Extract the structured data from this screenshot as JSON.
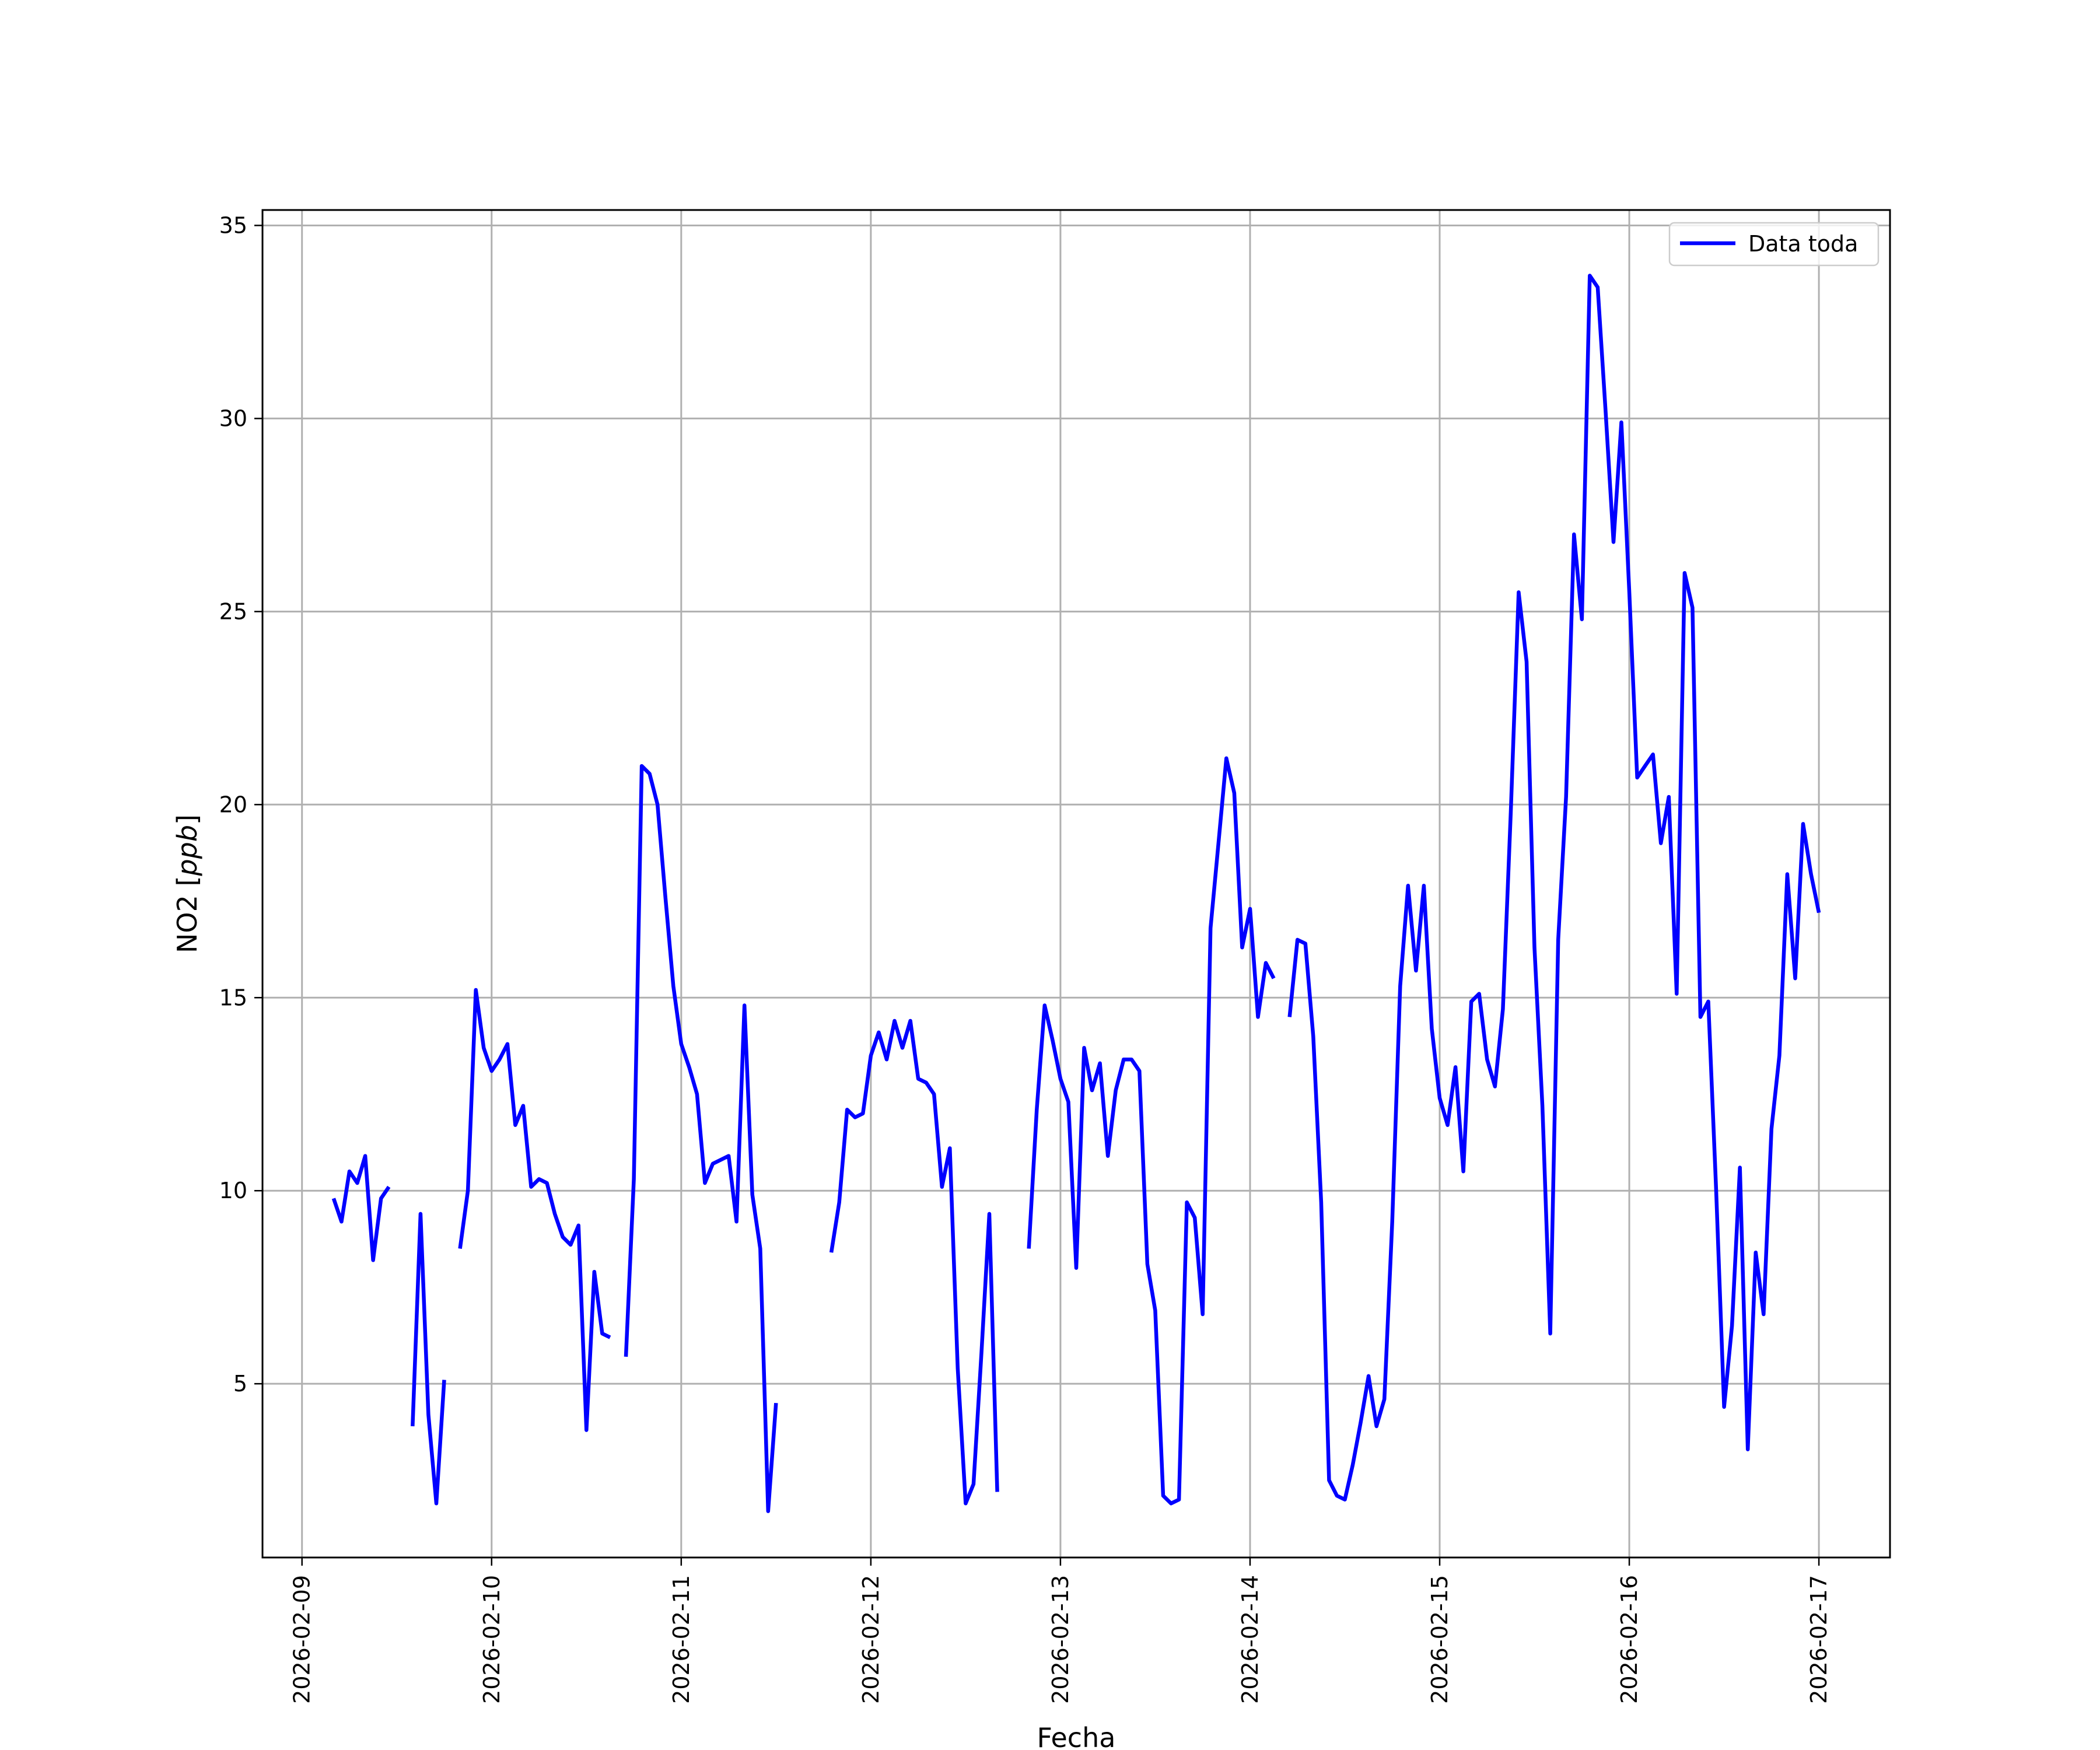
{
  "chart_data": {
    "type": "line",
    "xlabel": "Fecha",
    "ylabel": "NO2 [ppb]",
    "ylabel_plain": "NO2 [",
    "ylabel_italic": "ppb",
    "ylabel_close": "]",
    "xlim": [
      "2026-02-08T19:00",
      "2026-02-17T09:00"
    ],
    "ylim": [
      0.5,
      35.4
    ],
    "grid": true,
    "legend_position": "top-right",
    "x_ticks": [
      "2026-02-09",
      "2026-02-10",
      "2026-02-11",
      "2026-02-12",
      "2026-02-13",
      "2026-02-14",
      "2026-02-15",
      "2026-02-16",
      "2026-02-17"
    ],
    "y_ticks": [
      5,
      10,
      15,
      20,
      25,
      30,
      35
    ],
    "series": [
      {
        "name": "Data toda",
        "color": "#0000ff",
        "points": [
          [
            "2026-02-09T04:00",
            9.8
          ],
          [
            "2026-02-09T05:00",
            9.2
          ],
          [
            "2026-02-09T06:00",
            10.5
          ],
          [
            "2026-02-09T07:00",
            10.2
          ],
          [
            "2026-02-09T08:00",
            10.9
          ],
          [
            "2026-02-09T09:00",
            8.2
          ],
          [
            "2026-02-09T10:00",
            9.8
          ],
          [
            "2026-02-09T11:00",
            10.1
          ],
          [
            "2026-02-09T12:00",
            null
          ],
          [
            "2026-02-09T14:00",
            3.9
          ],
          [
            "2026-02-09T15:00",
            9.4
          ],
          [
            "2026-02-09T16:00",
            4.2
          ],
          [
            "2026-02-09T17:00",
            1.9
          ],
          [
            "2026-02-09T18:00",
            5.1
          ],
          [
            "2026-02-09T19:00",
            null
          ],
          [
            "2026-02-09T20:00",
            8.5
          ],
          [
            "2026-02-09T21:00",
            10.0
          ],
          [
            "2026-02-09T22:00",
            15.2
          ],
          [
            "2026-02-09T23:00",
            13.7
          ],
          [
            "2026-02-10T00:00",
            13.1
          ],
          [
            "2026-02-10T01:00",
            13.4
          ],
          [
            "2026-02-10T02:00",
            13.8
          ],
          [
            "2026-02-10T03:00",
            11.7
          ],
          [
            "2026-02-10T04:00",
            12.2
          ],
          [
            "2026-02-10T05:00",
            10.1
          ],
          [
            "2026-02-10T06:00",
            10.3
          ],
          [
            "2026-02-10T07:00",
            10.2
          ],
          [
            "2026-02-10T08:00",
            9.4
          ],
          [
            "2026-02-10T09:00",
            8.8
          ],
          [
            "2026-02-10T10:00",
            8.6
          ],
          [
            "2026-02-10T11:00",
            9.1
          ],
          [
            "2026-02-10T12:00",
            3.8
          ],
          [
            "2026-02-10T13:00",
            7.9
          ],
          [
            "2026-02-10T14:00",
            6.3
          ],
          [
            "2026-02-10T15:00",
            6.2
          ],
          [
            "2026-02-10T16:00",
            null
          ],
          [
            "2026-02-10T17:00",
            5.7
          ],
          [
            "2026-02-10T18:00",
            10.3
          ],
          [
            "2026-02-10T19:00",
            21.0
          ],
          [
            "2026-02-10T20:00",
            20.8
          ],
          [
            "2026-02-10T21:00",
            20.0
          ],
          [
            "2026-02-10T22:00",
            17.6
          ],
          [
            "2026-02-10T23:00",
            15.3
          ],
          [
            "2026-02-11T00:00",
            13.8
          ],
          [
            "2026-02-11T01:00",
            13.2
          ],
          [
            "2026-02-11T02:00",
            12.5
          ],
          [
            "2026-02-11T03:00",
            10.2
          ],
          [
            "2026-02-11T04:00",
            10.7
          ],
          [
            "2026-02-11T05:00",
            10.8
          ],
          [
            "2026-02-11T06:00",
            10.9
          ],
          [
            "2026-02-11T07:00",
            9.2
          ],
          [
            "2026-02-11T08:00",
            14.8
          ],
          [
            "2026-02-11T09:00",
            9.9
          ],
          [
            "2026-02-11T10:00",
            8.5
          ],
          [
            "2026-02-11T11:00",
            1.7
          ],
          [
            "2026-02-11T12:00",
            4.5
          ],
          [
            "2026-02-11T13:00",
            null
          ],
          [
            "2026-02-11T19:00",
            8.4
          ],
          [
            "2026-02-11T20:00",
            9.7
          ],
          [
            "2026-02-11T21:00",
            12.1
          ],
          [
            "2026-02-11T22:00",
            11.9
          ],
          [
            "2026-02-11T23:00",
            12.0
          ],
          [
            "2026-02-12T00:00",
            13.5
          ],
          [
            "2026-02-12T01:00",
            14.1
          ],
          [
            "2026-02-12T02:00",
            13.4
          ],
          [
            "2026-02-12T03:00",
            14.4
          ],
          [
            "2026-02-12T04:00",
            13.7
          ],
          [
            "2026-02-12T05:00",
            14.4
          ],
          [
            "2026-02-12T06:00",
            12.9
          ],
          [
            "2026-02-12T07:00",
            12.8
          ],
          [
            "2026-02-12T08:00",
            12.5
          ],
          [
            "2026-02-12T09:00",
            10.1
          ],
          [
            "2026-02-12T10:00",
            11.1
          ],
          [
            "2026-02-12T11:00",
            5.4
          ],
          [
            "2026-02-12T12:00",
            1.9
          ],
          [
            "2026-02-12T13:00",
            2.4
          ],
          [
            "2026-02-12T14:00",
            5.8
          ],
          [
            "2026-02-12T15:00",
            9.4
          ],
          [
            "2026-02-12T16:00",
            2.2
          ],
          [
            "2026-02-12T17:00",
            null
          ],
          [
            "2026-02-12T20:00",
            8.5
          ],
          [
            "2026-02-12T21:00",
            12.1
          ],
          [
            "2026-02-12T22:00",
            14.8
          ],
          [
            "2026-02-12T23:00",
            13.9
          ],
          [
            "2026-02-13T00:00",
            12.9
          ],
          [
            "2026-02-13T01:00",
            12.3
          ],
          [
            "2026-02-13T02:00",
            8.0
          ],
          [
            "2026-02-13T03:00",
            13.7
          ],
          [
            "2026-02-13T04:00",
            12.6
          ],
          [
            "2026-02-13T05:00",
            13.3
          ],
          [
            "2026-02-13T06:00",
            10.9
          ],
          [
            "2026-02-13T07:00",
            12.6
          ],
          [
            "2026-02-13T08:00",
            13.4
          ],
          [
            "2026-02-13T09:00",
            13.4
          ],
          [
            "2026-02-13T10:00",
            13.1
          ],
          [
            "2026-02-13T11:00",
            8.1
          ],
          [
            "2026-02-13T12:00",
            6.9
          ],
          [
            "2026-02-13T13:00",
            2.1
          ],
          [
            "2026-02-13T14:00",
            1.9
          ],
          [
            "2026-02-13T15:00",
            2.0
          ],
          [
            "2026-02-13T16:00",
            9.7
          ],
          [
            "2026-02-13T17:00",
            9.3
          ],
          [
            "2026-02-13T18:00",
            6.8
          ],
          [
            "2026-02-13T19:00",
            16.8
          ],
          [
            "2026-02-13T20:00",
            19.0
          ],
          [
            "2026-02-13T21:00",
            21.2
          ],
          [
            "2026-02-13T22:00",
            20.3
          ],
          [
            "2026-02-13T23:00",
            16.3
          ],
          [
            "2026-02-14T00:00",
            17.3
          ],
          [
            "2026-02-14T01:00",
            14.5
          ],
          [
            "2026-02-14T02:00",
            15.9
          ],
          [
            "2026-02-14T03:00",
            15.5
          ],
          [
            "2026-02-14T04:00",
            null
          ],
          [
            "2026-02-14T05:00",
            14.5
          ],
          [
            "2026-02-14T06:00",
            16.5
          ],
          [
            "2026-02-14T07:00",
            16.4
          ],
          [
            "2026-02-14T08:00",
            14.0
          ],
          [
            "2026-02-14T09:00",
            9.7
          ],
          [
            "2026-02-14T10:00",
            2.5
          ],
          [
            "2026-02-14T11:00",
            2.1
          ],
          [
            "2026-02-14T12:00",
            2.0
          ],
          [
            "2026-02-14T13:00",
            2.9
          ],
          [
            "2026-02-14T14:00",
            4.0
          ],
          [
            "2026-02-14T15:00",
            5.2
          ],
          [
            "2026-02-14T16:00",
            3.9
          ],
          [
            "2026-02-14T17:00",
            4.6
          ],
          [
            "2026-02-14T18:00",
            9.2
          ],
          [
            "2026-02-14T19:00",
            15.3
          ],
          [
            "2026-02-14T20:00",
            17.9
          ],
          [
            "2026-02-14T21:00",
            15.7
          ],
          [
            "2026-02-14T22:00",
            17.9
          ],
          [
            "2026-02-14T23:00",
            14.2
          ],
          [
            "2026-02-15T00:00",
            12.4
          ],
          [
            "2026-02-15T01:00",
            11.7
          ],
          [
            "2026-02-15T02:00",
            13.2
          ],
          [
            "2026-02-15T03:00",
            10.5
          ],
          [
            "2026-02-15T04:00",
            14.9
          ],
          [
            "2026-02-15T05:00",
            15.1
          ],
          [
            "2026-02-15T06:00",
            13.4
          ],
          [
            "2026-02-15T07:00",
            12.7
          ],
          [
            "2026-02-15T08:00",
            14.7
          ],
          [
            "2026-02-15T09:00",
            19.8
          ],
          [
            "2026-02-15T10:00",
            25.5
          ],
          [
            "2026-02-15T11:00",
            23.7
          ],
          [
            "2026-02-15T12:00",
            16.3
          ],
          [
            "2026-02-15T13:00",
            12.2
          ],
          [
            "2026-02-15T14:00",
            6.3
          ],
          [
            "2026-02-15T15:00",
            16.5
          ],
          [
            "2026-02-15T16:00",
            20.2
          ],
          [
            "2026-02-15T17:00",
            27.0
          ],
          [
            "2026-02-15T18:00",
            24.8
          ],
          [
            "2026-02-15T19:00",
            33.7
          ],
          [
            "2026-02-15T20:00",
            33.4
          ],
          [
            "2026-02-15T21:00",
            30.2
          ],
          [
            "2026-02-15T22:00",
            26.8
          ],
          [
            "2026-02-15T23:00",
            29.9
          ],
          [
            "2026-02-16T00:00",
            25.5
          ],
          [
            "2026-02-16T01:00",
            20.7
          ],
          [
            "2026-02-16T02:00",
            21.0
          ],
          [
            "2026-02-16T03:00",
            21.3
          ],
          [
            "2026-02-16T04:00",
            19.0
          ],
          [
            "2026-02-16T05:00",
            20.2
          ],
          [
            "2026-02-16T06:00",
            15.1
          ],
          [
            "2026-02-16T07:00",
            26.0
          ],
          [
            "2026-02-16T08:00",
            25.1
          ],
          [
            "2026-02-16T09:00",
            14.5
          ],
          [
            "2026-02-16T10:00",
            14.9
          ],
          [
            "2026-02-16T11:00",
            10.0
          ],
          [
            "2026-02-16T12:00",
            4.4
          ],
          [
            "2026-02-16T13:00",
            6.5
          ],
          [
            "2026-02-16T14:00",
            10.6
          ],
          [
            "2026-02-16T15:00",
            3.3
          ],
          [
            "2026-02-16T16:00",
            8.4
          ],
          [
            "2026-02-16T17:00",
            6.8
          ],
          [
            "2026-02-16T18:00",
            11.6
          ],
          [
            "2026-02-16T19:00",
            13.5
          ],
          [
            "2026-02-16T20:00",
            18.2
          ],
          [
            "2026-02-16T21:00",
            15.5
          ],
          [
            "2026-02-16T22:00",
            19.5
          ],
          [
            "2026-02-16T23:00",
            18.2
          ],
          [
            "2026-02-17T00:00",
            17.2
          ]
        ]
      }
    ]
  }
}
